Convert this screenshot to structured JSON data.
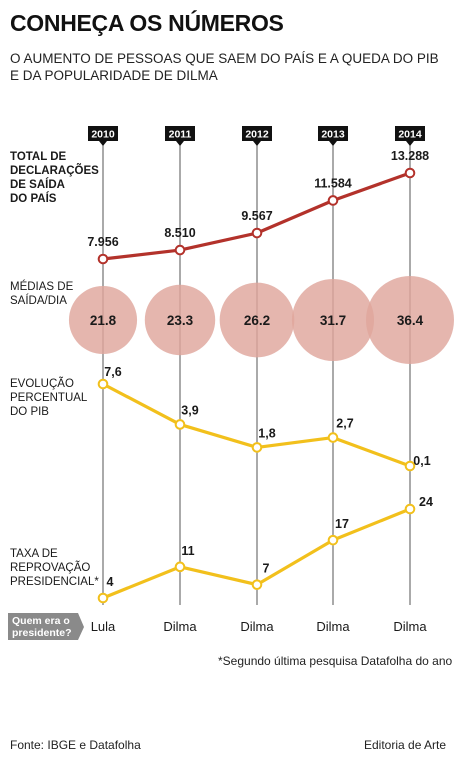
{
  "header": {
    "title": "CONHEÇA OS NÚMEROS",
    "subtitle": "O AUMENTO DE PESSOAS QUE SAEM DO PAÍS E A QUEDA DO PIB E DA POPULARIDADE DE DILMA"
  },
  "chart_data": {
    "type": "line",
    "categories": [
      "2010",
      "2011",
      "2012",
      "2013",
      "2014"
    ],
    "presidents": [
      "Lula",
      "Dilma",
      "Dilma",
      "Dilma",
      "Dilma"
    ],
    "series": [
      {
        "name": "TOTAL DE DECLARAÇÕES DE SAÍDA DO PAÍS",
        "label_lines": [
          "TOTAL DE",
          "DECLARAÇÕES",
          "DE SAÍDA",
          "DO PAÍS"
        ],
        "values": [
          7956,
          8510,
          9567,
          11584,
          13288
        ],
        "display": [
          "7.956",
          "8.510",
          "9.567",
          "11.584",
          "13.288"
        ],
        "color": "#b3322b"
      },
      {
        "name": "MÉDIAS DE SAÍDA/DIA",
        "label_lines": [
          "MÉDIAS DE",
          "SAÍDA/DIA"
        ],
        "type": "bubble",
        "values": [
          21.8,
          23.3,
          26.2,
          31.7,
          36.4
        ],
        "display": [
          "21.8",
          "23.3",
          "26.2",
          "31.7",
          "36.4"
        ],
        "color": "#dfa69c"
      },
      {
        "name": "EVOLUÇÃO PERCENTUAL DO PIB",
        "label_lines": [
          "EVOLUÇÃO",
          "PERCENTUAL",
          "DO PIB"
        ],
        "values": [
          7.6,
          3.9,
          1.8,
          2.7,
          0.1
        ],
        "display": [
          "7,6",
          "3,9",
          "1,8",
          "2,7",
          "0,1"
        ],
        "color": "#f2c01c"
      },
      {
        "name": "TAXA DE REPROVAÇÃO PRESIDENCIAL*",
        "label_lines": [
          "TAXA DE",
          "REPROVAÇÃO",
          "PRESIDENCIAL*"
        ],
        "values": [
          4,
          11,
          7,
          17,
          24
        ],
        "display": [
          "4",
          "11",
          "7",
          "17",
          "24"
        ],
        "color": "#f2c01c"
      }
    ],
    "president_badge": [
      "Quem era o",
      "presidente?"
    ]
  },
  "footer": {
    "footnote": "*Segundo última pesquisa Datafolha do ano",
    "source": "Fonte: IBGE e Datafolha",
    "credit": "Editoria de Arte"
  }
}
